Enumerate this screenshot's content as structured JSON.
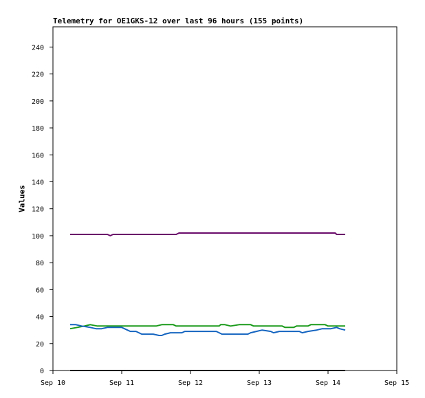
{
  "chart_data": {
    "type": "line",
    "title": "Telemetry for OE1GKS-12 over last 96 hours (155 points)",
    "xlabel": "",
    "ylabel": "Values",
    "xlim": [
      "2024-09-10",
      "2024-09-15"
    ],
    "ylim": [
      0,
      255
    ],
    "x_ticks": [
      "Sep 10",
      "Sep 11",
      "Sep 12",
      "Sep 13",
      "Sep 14",
      "Sep 15"
    ],
    "y_ticks": [
      0,
      20,
      40,
      60,
      80,
      100,
      120,
      140,
      160,
      180,
      200,
      220,
      240
    ],
    "grid": false,
    "legend": "none",
    "series": [
      {
        "color": "#6a0a6a",
        "points": [
          [
            "2024-09-10T06:00",
            101
          ],
          [
            "2024-09-10T19:00",
            101
          ],
          [
            "2024-09-10T20:00",
            100
          ],
          [
            "2024-09-10T21:00",
            101
          ],
          [
            "2024-09-11T19:00",
            101
          ],
          [
            "2024-09-11T20:00",
            102
          ],
          [
            "2024-09-14T02:30",
            102
          ],
          [
            "2024-09-14T03:00",
            101
          ],
          [
            "2024-09-14T06:00",
            101
          ]
        ]
      },
      {
        "color": "#1a9a1a",
        "points": [
          [
            "2024-09-10T06:00",
            31
          ],
          [
            "2024-09-10T08:30",
            32
          ],
          [
            "2024-09-10T11:00",
            33
          ],
          [
            "2024-09-10T13:00",
            34
          ],
          [
            "2024-09-10T15:30",
            33
          ],
          [
            "2024-09-11T00:00",
            33
          ],
          [
            "2024-09-11T12:00",
            33
          ],
          [
            "2024-09-11T14:00",
            34
          ],
          [
            "2024-09-11T18:00",
            34
          ],
          [
            "2024-09-11T19:00",
            33
          ],
          [
            "2024-09-12T10:00",
            33
          ],
          [
            "2024-09-12T10:30",
            34
          ],
          [
            "2024-09-12T12:00",
            34
          ],
          [
            "2024-09-12T14:00",
            33
          ],
          [
            "2024-09-12T17:00",
            34
          ],
          [
            "2024-09-12T21:00",
            34
          ],
          [
            "2024-09-12T22:00",
            33
          ],
          [
            "2024-09-13T08:00",
            33
          ],
          [
            "2024-09-13T09:00",
            32
          ],
          [
            "2024-09-13T12:00",
            32
          ],
          [
            "2024-09-13T13:00",
            33
          ],
          [
            "2024-09-13T17:00",
            33
          ],
          [
            "2024-09-13T18:00",
            34
          ],
          [
            "2024-09-13T23:00",
            34
          ],
          [
            "2024-09-14T00:00",
            33
          ],
          [
            "2024-09-14T06:00",
            33
          ]
        ]
      },
      {
        "color": "#1565c0",
        "points": [
          [
            "2024-09-10T06:00",
            34
          ],
          [
            "2024-09-10T08:00",
            34
          ],
          [
            "2024-09-10T10:00",
            33
          ],
          [
            "2024-09-10T13:00",
            32
          ],
          [
            "2024-09-10T15:00",
            31
          ],
          [
            "2024-09-10T17:00",
            31
          ],
          [
            "2024-09-10T19:00",
            32
          ],
          [
            "2024-09-11T00:00",
            32
          ],
          [
            "2024-09-11T02:00",
            30
          ],
          [
            "2024-09-11T03:00",
            29
          ],
          [
            "2024-09-11T05:00",
            29
          ],
          [
            "2024-09-11T06:00",
            28
          ],
          [
            "2024-09-11T07:00",
            27
          ],
          [
            "2024-09-11T11:00",
            27
          ],
          [
            "2024-09-11T13:00",
            26
          ],
          [
            "2024-09-11T14:00",
            26
          ],
          [
            "2024-09-11T15:00",
            27
          ],
          [
            "2024-09-11T17:00",
            28
          ],
          [
            "2024-09-11T21:00",
            28
          ],
          [
            "2024-09-11T22:00",
            29
          ],
          [
            "2024-09-12T09:00",
            29
          ],
          [
            "2024-09-12T10:00",
            28
          ],
          [
            "2024-09-12T11:00",
            27
          ],
          [
            "2024-09-12T20:00",
            27
          ],
          [
            "2024-09-12T21:00",
            28
          ],
          [
            "2024-09-12T23:00",
            29
          ],
          [
            "2024-09-13T01:00",
            30
          ],
          [
            "2024-09-13T04:00",
            29
          ],
          [
            "2024-09-13T05:00",
            28
          ],
          [
            "2024-09-13T07:00",
            29
          ],
          [
            "2024-09-13T14:00",
            29
          ],
          [
            "2024-09-13T15:00",
            28
          ],
          [
            "2024-09-13T17:00",
            29
          ],
          [
            "2024-09-13T20:00",
            30
          ],
          [
            "2024-09-13T22:00",
            31
          ],
          [
            "2024-09-14T01:00",
            31
          ],
          [
            "2024-09-14T03:00",
            32
          ],
          [
            "2024-09-14T04:00",
            31
          ],
          [
            "2024-09-14T06:00",
            30
          ]
        ]
      },
      {
        "color": "#000000",
        "points": [
          [
            "2024-09-10T06:00",
            0
          ],
          [
            "2024-09-14T06:00",
            0
          ]
        ]
      }
    ]
  }
}
